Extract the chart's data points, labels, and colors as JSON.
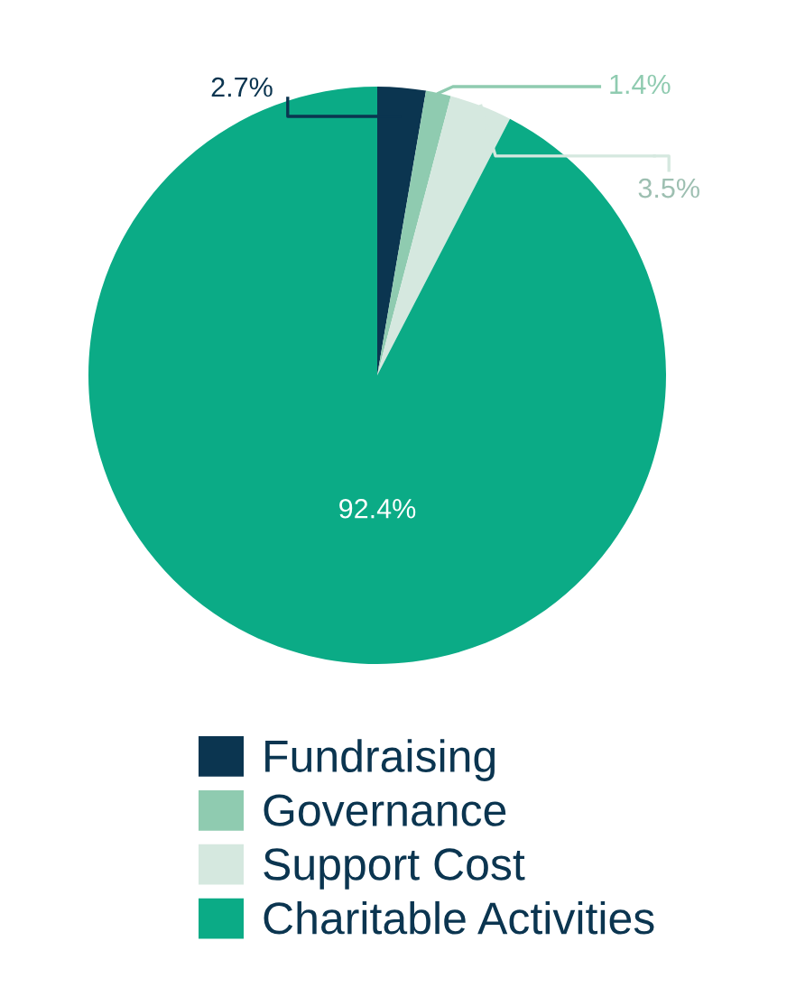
{
  "chart_data": {
    "type": "pie",
    "categories": [
      "Fundraising",
      "Governance",
      "Support Cost",
      "Charitable Activities"
    ],
    "values": [
      2.7,
      1.4,
      3.5,
      92.4
    ],
    "colors": [
      "#0b3550",
      "#8fcbb0",
      "#d5e8df",
      "#0bab86"
    ],
    "value_labels": [
      "2.7%",
      "1.4%",
      "3.5%",
      "92.4%"
    ],
    "legend": "bottom"
  }
}
